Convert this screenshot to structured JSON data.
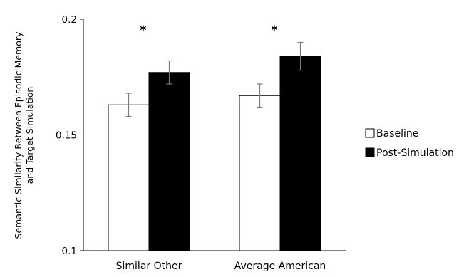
{
  "chart_data": {
    "type": "bar",
    "categories": [
      "Similar Other",
      "Average American"
    ],
    "series": [
      {
        "name": "Baseline",
        "values": [
          0.163,
          0.167
        ],
        "errors": [
          0.005,
          0.005
        ],
        "color": "#ffffff"
      },
      {
        "name": "Post-Simulation",
        "values": [
          0.177,
          0.184
        ],
        "errors": [
          0.005,
          0.006
        ],
        "color": "#000000"
      }
    ],
    "ylabel": [
      "Semantic Similarity Between Episodic Memory",
      "and Target Simulation"
    ],
    "xlabel": "",
    "ylim": [
      0.1,
      0.2
    ],
    "yticks": [
      "0.1",
      "0.15",
      "0.2"
    ],
    "ytick_values": [
      0.1,
      0.15,
      0.2
    ],
    "significance": [
      "*",
      "*"
    ],
    "legend_position": "right",
    "grid": false
  }
}
